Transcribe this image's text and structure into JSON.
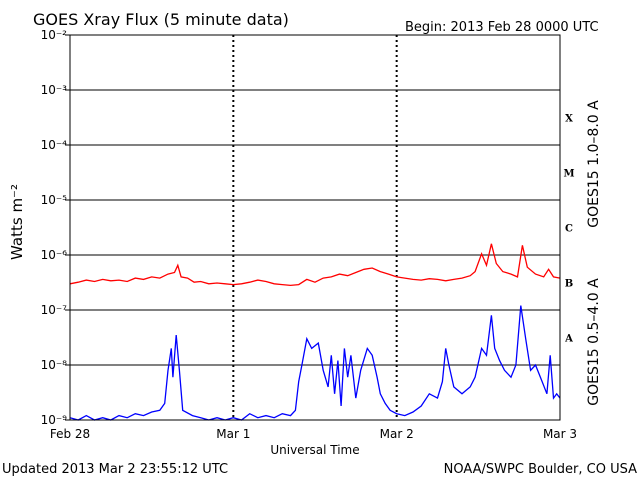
{
  "header": {
    "title": "GOES Xray Flux (5 minute data)",
    "begin": "Begin:  2013 Feb 28 0000 UTC"
  },
  "footer": {
    "updated": "Updated 2013 Mar  2 23:55:12 UTC",
    "credit": "NOAA/SWPC Boulder, CO USA"
  },
  "colors": {
    "long": "#ff0000",
    "short": "#0000ff",
    "grid": "#000000"
  },
  "chart_data": {
    "type": "line",
    "title": "GOES Xray Flux (5 minute data)",
    "xlabel": "Universal Time",
    "ylabel": "Watts m⁻²",
    "ylim": [
      1e-09,
      0.01
    ],
    "xlim": [
      0,
      3
    ],
    "y_scale": "log",
    "y_ticks": [
      {
        "value": 1e-09,
        "label": "10⁻⁹"
      },
      {
        "value": 1e-08,
        "label": "10⁻⁸"
      },
      {
        "value": 1e-07,
        "label": "10⁻⁷"
      },
      {
        "value": 1e-06,
        "label": "10⁻⁶"
      },
      {
        "value": 1e-05,
        "label": "10⁻⁵"
      },
      {
        "value": 0.0001,
        "label": "10⁻⁴"
      },
      {
        "value": 0.001,
        "label": "10⁻³"
      },
      {
        "value": 0.01,
        "label": "10⁻²"
      }
    ],
    "x_ticks": [
      {
        "value": 0,
        "label": "Feb 28"
      },
      {
        "value": 1,
        "label": "Mar 1"
      },
      {
        "value": 2,
        "label": "Mar 2"
      },
      {
        "value": 3,
        "label": "Mar 3"
      }
    ],
    "flare_classes": [
      {
        "label": "A",
        "value": 3.16e-08
      },
      {
        "label": "B",
        "value": 3.16e-07
      },
      {
        "label": "C",
        "value": 3.16e-06
      },
      {
        "label": "M",
        "value": 3.16e-05
      },
      {
        "label": "X",
        "value": 0.000316
      }
    ],
    "grid": true,
    "series": [
      {
        "name": "GOES15 1.0–8.0 A",
        "color": "#ff0000",
        "points": [
          [
            0.0,
            3e-07
          ],
          [
            0.05,
            3.2e-07
          ],
          [
            0.1,
            3.5e-07
          ],
          [
            0.15,
            3.3e-07
          ],
          [
            0.2,
            3.6e-07
          ],
          [
            0.25,
            3.4e-07
          ],
          [
            0.3,
            3.5e-07
          ],
          [
            0.35,
            3.3e-07
          ],
          [
            0.4,
            3.8e-07
          ],
          [
            0.45,
            3.6e-07
          ],
          [
            0.5,
            4e-07
          ],
          [
            0.55,
            3.8e-07
          ],
          [
            0.6,
            4.5e-07
          ],
          [
            0.64,
            4.8e-07
          ],
          [
            0.66,
            6.5e-07
          ],
          [
            0.68,
            4e-07
          ],
          [
            0.72,
            3.8e-07
          ],
          [
            0.76,
            3.2e-07
          ],
          [
            0.8,
            3.3e-07
          ],
          [
            0.85,
            3e-07
          ],
          [
            0.9,
            3.1e-07
          ],
          [
            0.95,
            3e-07
          ],
          [
            1.0,
            2.9e-07
          ],
          [
            1.05,
            3e-07
          ],
          [
            1.1,
            3.2e-07
          ],
          [
            1.15,
            3.5e-07
          ],
          [
            1.2,
            3.3e-07
          ],
          [
            1.25,
            3e-07
          ],
          [
            1.3,
            2.9e-07
          ],
          [
            1.35,
            2.8e-07
          ],
          [
            1.4,
            2.9e-07
          ],
          [
            1.45,
            3.6e-07
          ],
          [
            1.5,
            3.2e-07
          ],
          [
            1.55,
            3.8e-07
          ],
          [
            1.6,
            4e-07
          ],
          [
            1.65,
            4.5e-07
          ],
          [
            1.7,
            4.2e-07
          ],
          [
            1.75,
            4.8e-07
          ],
          [
            1.8,
            5.5e-07
          ],
          [
            1.85,
            5.8e-07
          ],
          [
            1.9,
            5e-07
          ],
          [
            1.95,
            4.5e-07
          ],
          [
            2.0,
            4e-07
          ],
          [
            2.05,
            3.8e-07
          ],
          [
            2.1,
            3.6e-07
          ],
          [
            2.15,
            3.5e-07
          ],
          [
            2.2,
            3.7e-07
          ],
          [
            2.25,
            3.6e-07
          ],
          [
            2.3,
            3.4e-07
          ],
          [
            2.35,
            3.6e-07
          ],
          [
            2.4,
            3.8e-07
          ],
          [
            2.45,
            4.2e-07
          ],
          [
            2.48,
            5e-07
          ],
          [
            2.52,
            1.05e-06
          ],
          [
            2.55,
            6.5e-07
          ],
          [
            2.58,
            1.6e-06
          ],
          [
            2.61,
            7e-07
          ],
          [
            2.65,
            5e-07
          ],
          [
            2.7,
            4.5e-07
          ],
          [
            2.74,
            4e-07
          ],
          [
            2.77,
            1.5e-06
          ],
          [
            2.8,
            6e-07
          ],
          [
            2.85,
            4.5e-07
          ],
          [
            2.9,
            4e-07
          ],
          [
            2.93,
            5.5e-07
          ],
          [
            2.96,
            4e-07
          ],
          [
            3.0,
            3.8e-07
          ]
        ]
      },
      {
        "name": "GOES15 0.5–4.0 A",
        "color": "#0000ff",
        "points": [
          [
            0.0,
            1.1e-09
          ],
          [
            0.05,
            1e-09
          ],
          [
            0.1,
            1.2e-09
          ],
          [
            0.15,
            1e-09
          ],
          [
            0.2,
            1.1e-09
          ],
          [
            0.25,
            1e-09
          ],
          [
            0.3,
            1.2e-09
          ],
          [
            0.35,
            1.1e-09
          ],
          [
            0.4,
            1.3e-09
          ],
          [
            0.45,
            1.2e-09
          ],
          [
            0.5,
            1.4e-09
          ],
          [
            0.55,
            1.5e-09
          ],
          [
            0.58,
            2e-09
          ],
          [
            0.6,
            8e-09
          ],
          [
            0.62,
            2e-08
          ],
          [
            0.63,
            6e-09
          ],
          [
            0.65,
            3.5e-08
          ],
          [
            0.67,
            8e-09
          ],
          [
            0.69,
            1.5e-09
          ],
          [
            0.75,
            1.2e-09
          ],
          [
            0.8,
            1.1e-09
          ],
          [
            0.85,
            1e-09
          ],
          [
            0.9,
            1.1e-09
          ],
          [
            0.95,
            1e-09
          ],
          [
            1.0,
            1.1e-09
          ],
          [
            1.05,
            1e-09
          ],
          [
            1.1,
            1.3e-09
          ],
          [
            1.15,
            1.1e-09
          ],
          [
            1.2,
            1.2e-09
          ],
          [
            1.25,
            1.1e-09
          ],
          [
            1.3,
            1.3e-09
          ],
          [
            1.35,
            1.2e-09
          ],
          [
            1.38,
            1.5e-09
          ],
          [
            1.4,
            5e-09
          ],
          [
            1.42,
            1e-08
          ],
          [
            1.45,
            3e-08
          ],
          [
            1.48,
            2e-08
          ],
          [
            1.52,
            2.5e-08
          ],
          [
            1.55,
            8e-09
          ],
          [
            1.58,
            4e-09
          ],
          [
            1.6,
            1.5e-08
          ],
          [
            1.62,
            3e-09
          ],
          [
            1.64,
            1.2e-08
          ],
          [
            1.66,
            1.8e-09
          ],
          [
            1.68,
            2e-08
          ],
          [
            1.7,
            6e-09
          ],
          [
            1.72,
            1.5e-08
          ],
          [
            1.75,
            2.5e-09
          ],
          [
            1.78,
            8e-09
          ],
          [
            1.82,
            2e-08
          ],
          [
            1.85,
            1.5e-08
          ],
          [
            1.88,
            6e-09
          ],
          [
            1.9,
            3e-09
          ],
          [
            1.93,
            2e-09
          ],
          [
            1.96,
            1.5e-09
          ],
          [
            2.0,
            1.3e-09
          ],
          [
            2.05,
            1.2e-09
          ],
          [
            2.1,
            1.4e-09
          ],
          [
            2.15,
            1.8e-09
          ],
          [
            2.2,
            3e-09
          ],
          [
            2.25,
            2.5e-09
          ],
          [
            2.28,
            5e-09
          ],
          [
            2.3,
            2e-08
          ],
          [
            2.32,
            1e-08
          ],
          [
            2.35,
            4e-09
          ],
          [
            2.4,
            3e-09
          ],
          [
            2.45,
            4e-09
          ],
          [
            2.48,
            6e-09
          ],
          [
            2.52,
            2e-08
          ],
          [
            2.55,
            1.5e-08
          ],
          [
            2.58,
            8e-08
          ],
          [
            2.6,
            2e-08
          ],
          [
            2.63,
            1.2e-08
          ],
          [
            2.66,
            8e-09
          ],
          [
            2.7,
            6e-09
          ],
          [
            2.73,
            1e-08
          ],
          [
            2.76,
            1.2e-07
          ],
          [
            2.79,
            3e-08
          ],
          [
            2.82,
            8e-09
          ],
          [
            2.85,
            1e-08
          ],
          [
            2.88,
            6e-09
          ],
          [
            2.92,
            3e-09
          ],
          [
            2.94,
            1.5e-08
          ],
          [
            2.96,
            2.5e-09
          ],
          [
            2.98,
            3e-09
          ],
          [
            3.0,
            2.5e-09
          ]
        ]
      }
    ]
  }
}
